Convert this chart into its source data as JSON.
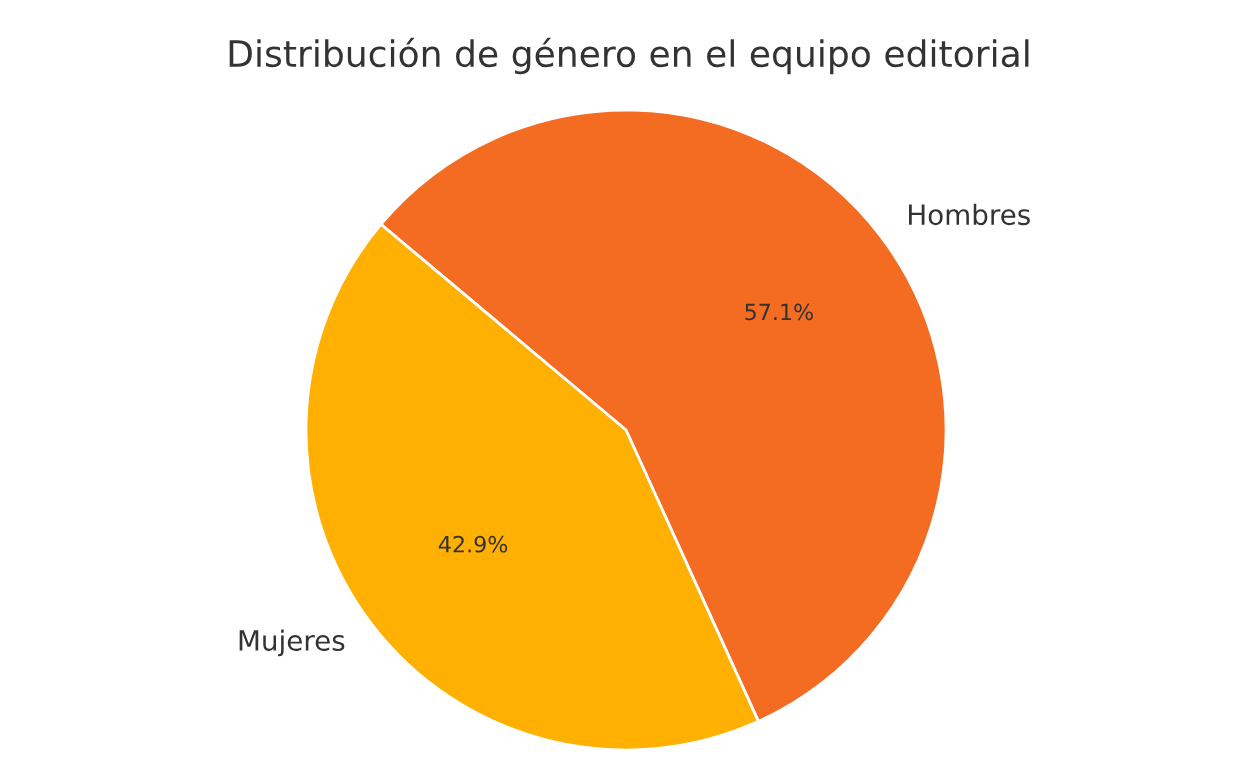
{
  "chart_data": {
    "type": "pie",
    "title": "Distribución de género en el equipo editorial",
    "categories": [
      "Hombres",
      "Mujeres"
    ],
    "values": [
      57.1,
      42.9
    ],
    "colors": [
      "#f46b22",
      "#ffb000"
    ],
    "value_labels": [
      "57.1%",
      "42.9%"
    ],
    "legend": false
  }
}
